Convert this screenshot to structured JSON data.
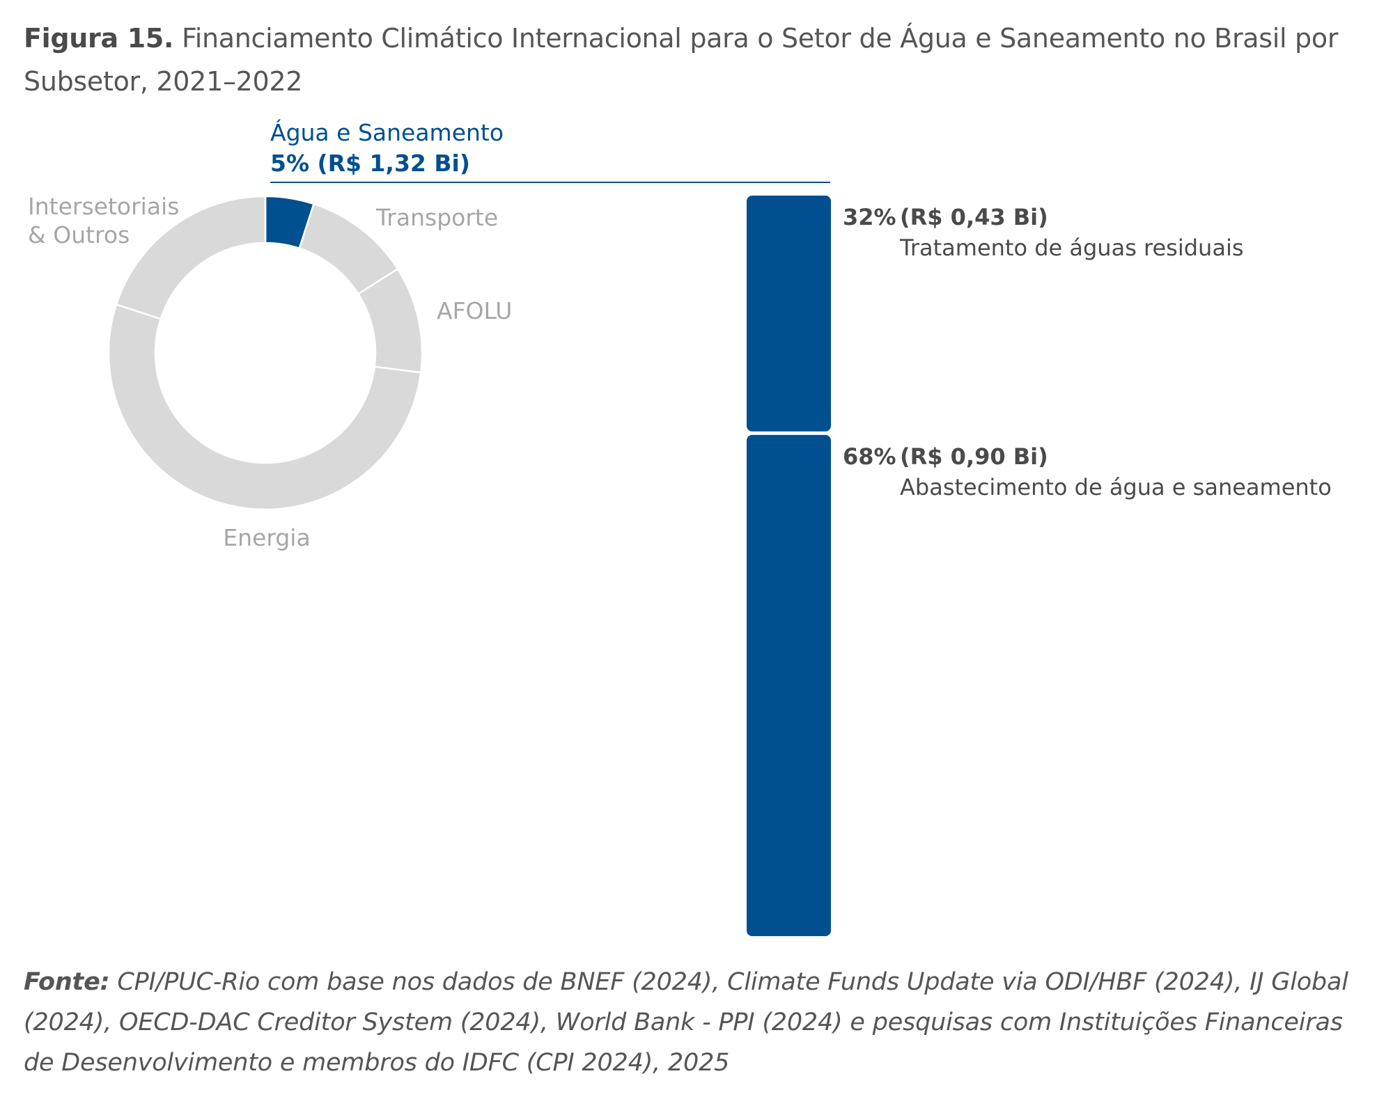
{
  "title": {
    "label": "Figura 15.",
    "text": "Financiamento Climático Internacional para o Setor de Água e Saneamento no Brasil por Subsetor, 2021–2022"
  },
  "colors": {
    "highlight": "#004f91",
    "other": "#d9d9d9",
    "muted_text": "#a6a6a6",
    "dark_text": "#4a4a4a"
  },
  "chart_data": [
    {
      "type": "pie",
      "donut": true,
      "slices": [
        {
          "label": "Água e Saneamento",
          "value": 5,
          "value_label": "5% (R$ 1,32 Bi)",
          "highlight": true
        },
        {
          "label": "Transporte",
          "value": 11
        },
        {
          "label": "AFOLU",
          "value": 11
        },
        {
          "label": "Energia",
          "value": 53
        },
        {
          "label": "Intersetoriais & Outros",
          "value": 20
        }
      ]
    },
    {
      "type": "bar",
      "stacked": true,
      "orientation": "vertical",
      "total": 1.32,
      "segments": [
        {
          "label": "Tratamento de águas residuais",
          "percent_label": "32%",
          "amount_label": "(R$ 0,43 Bi)",
          "value": 32,
          "amount": 0.43
        },
        {
          "label": "Abastecimento de água e saneamento",
          "percent_label": "68%",
          "amount_label": "(R$ 0,90 Bi)",
          "value": 68,
          "amount": 0.9
        }
      ]
    }
  ],
  "source": {
    "label": "Fonte:",
    "text": "CPI/PUC-Rio com base nos dados de BNEF (2024), Climate Funds Update via ODI/HBF (2024), IJ Global (2024), OECD-DAC Creditor System (2024), World Bank - PPI (2024) e pesquisas com Instituições Financeiras de Desenvolvimento e membros do IDFC (CPI 2024), 2025"
  }
}
